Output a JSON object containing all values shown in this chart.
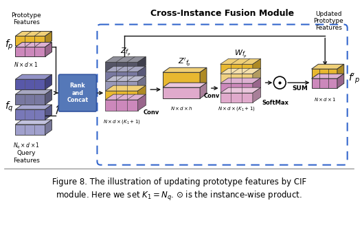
{
  "title": "Cross-Instance Fusion Module",
  "bg_color": "#ffffff",
  "colors": {
    "yellow": "#E8B830",
    "yellow_light": "#F0D080",
    "pink": "#CC88BB",
    "pink_light": "#E0AACC",
    "purple_dark": "#5858A8",
    "purple_mid": "#7878B8",
    "purple_light": "#A0A0CC",
    "gray_dark": "#555566",
    "gray_mid": "#7878A0",
    "gray_light": "#9898B8",
    "rank_fill": "#5578B8",
    "rank_edge": "#3355A0",
    "arrow": "#111111",
    "dashed_border": "#3366CC",
    "black_border": "#111111"
  },
  "caption1": "Figure 8. The illustration of updating prototype features by CIF",
  "caption2": "module. Here we set $K_1 = N_q$. $\\odot$ is the instance-wise product."
}
